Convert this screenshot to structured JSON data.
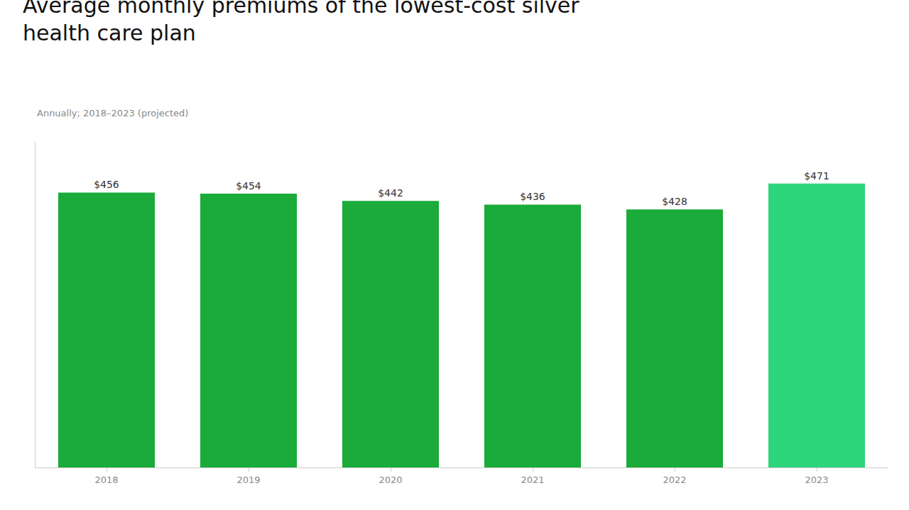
{
  "chart_data": {
    "type": "bar",
    "title": "Average monthly premiums of the lowest-cost silver\nhealth care plan",
    "subtitle": "Annually; 2018–2023 (projected)",
    "categories": [
      "2018",
      "2019",
      "2020",
      "2021",
      "2022",
      "2023"
    ],
    "values": [
      456,
      454,
      442,
      436,
      428,
      471
    ],
    "value_labels": [
      "$456",
      "$454",
      "$442",
      "$436",
      "$428",
      "$471"
    ],
    "colors": [
      "#1aab3a",
      "#1aab3a",
      "#1aab3a",
      "#1aab3a",
      "#1aab3a",
      "#2dd67a"
    ],
    "ylim": [
      0,
      540
    ],
    "data_labels": true,
    "tick_labels": "x",
    "grid": false
  }
}
